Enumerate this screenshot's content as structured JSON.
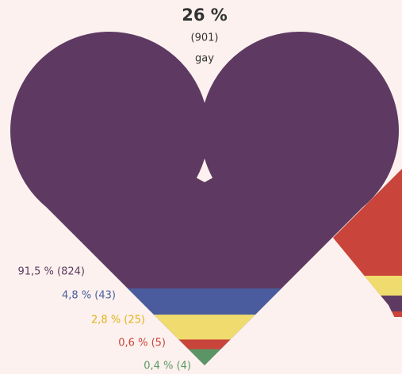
{
  "header": {
    "percent": "26 %",
    "count": "(901)",
    "label": "gay"
  },
  "segments": [
    {
      "label": "91,5 % (824)",
      "value": 91.5,
      "color": "#5e3a62",
      "text_color": "#5e3a62"
    },
    {
      "label": "4,8 % (43)",
      "value": 4.8,
      "color": "#4a5c9e",
      "text_color": "#4a5ea0"
    },
    {
      "label": "2,8 % (25)",
      "value": 2.8,
      "color": "#f0dc6e",
      "text_color": "#e0b21a"
    },
    {
      "label": "0,6 % (5)",
      "value": 0.6,
      "color": "#c9443a",
      "text_color": "#c9453a"
    },
    {
      "label": "0,4 % (4)",
      "value": 0.4,
      "color": "#5b9565",
      "text_color": "#5a9a63"
    }
  ]
}
